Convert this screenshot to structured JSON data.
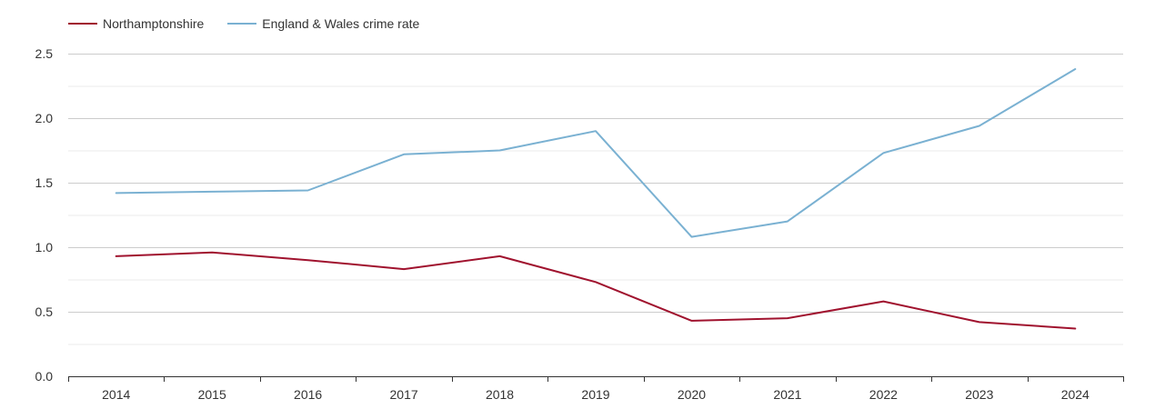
{
  "chart_data": {
    "type": "line",
    "title": "",
    "xlabel": "",
    "ylabel": "",
    "categories": [
      "2014",
      "2015",
      "2016",
      "2017",
      "2018",
      "2019",
      "2020",
      "2021",
      "2022",
      "2023",
      "2024"
    ],
    "series": [
      {
        "name": "Northamptonshire",
        "color": "#a0122e",
        "values": [
          0.93,
          0.96,
          0.9,
          0.83,
          0.93,
          0.73,
          0.43,
          0.45,
          0.58,
          0.42,
          0.37
        ]
      },
      {
        "name": "England & Wales crime rate",
        "color": "#7ab1d2",
        "values": [
          1.42,
          1.43,
          1.44,
          1.72,
          1.75,
          1.9,
          1.08,
          1.2,
          1.73,
          1.94,
          2.38
        ]
      }
    ],
    "ylim": [
      0,
      2.5
    ],
    "yticks": [
      "0.0",
      "0.5",
      "1.0",
      "1.5",
      "2.0",
      "2.5"
    ],
    "grid": true,
    "legend_position": "top-left"
  }
}
